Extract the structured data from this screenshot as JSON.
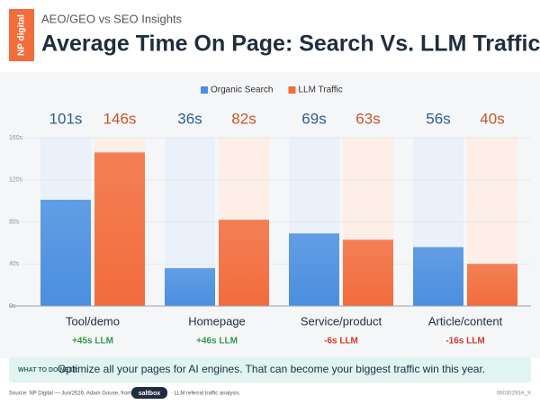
{
  "header": {
    "logo": "NP digital",
    "subtitle": "AEO/GEO vs SEO Insights"
  },
  "chart_data": {
    "type": "bar",
    "title": "Average Time On Page: Search Vs. LLM Traffic",
    "categories": [
      "Tool/demo",
      "Homepage",
      "Service/product",
      "Article/content"
    ],
    "series": [
      {
        "name": "Organic Search",
        "color": "#4a8fe0",
        "label_color": "#2c5f8e",
        "values": [
          101,
          36,
          69,
          56
        ],
        "value_labels": [
          "101s",
          "36s",
          "69s",
          "56s"
        ]
      },
      {
        "name": "LLM Traffic",
        "color": "#f26c3c",
        "label_color": "#c6552a",
        "values": [
          146,
          82,
          63,
          40
        ],
        "value_labels": [
          "146s",
          "82s",
          "63s",
          "40s"
        ]
      }
    ],
    "differences": [
      "+45s LLM",
      "+46s LLM",
      "-6s LLM",
      "-16s LLM"
    ],
    "difference_colors": [
      "#2f9a4a",
      "#2f9a4a",
      "#d0392b",
      "#d0392b"
    ],
    "ylim": [
      0,
      160
    ],
    "yticks": [
      {
        "value": 0,
        "label": "0s"
      },
      {
        "value": 40,
        "label": "40s"
      },
      {
        "value": 80,
        "label": "80s"
      },
      {
        "value": 120,
        "label": "120s"
      },
      {
        "value": 160,
        "label": "160s"
      }
    ],
    "grid": true
  },
  "callout": {
    "label": "WHAT TO DO NEXT:",
    "text": "Optimize all your pages for AI engines. That can become your biggest traffic win this year."
  },
  "footer": {
    "source": "Source: NP Digital — Jun/2026. Adam Gouse, from",
    "brand": "saltbox",
    "note": "· LLM referral traffic analysis.",
    "code": "06030293A_X"
  }
}
